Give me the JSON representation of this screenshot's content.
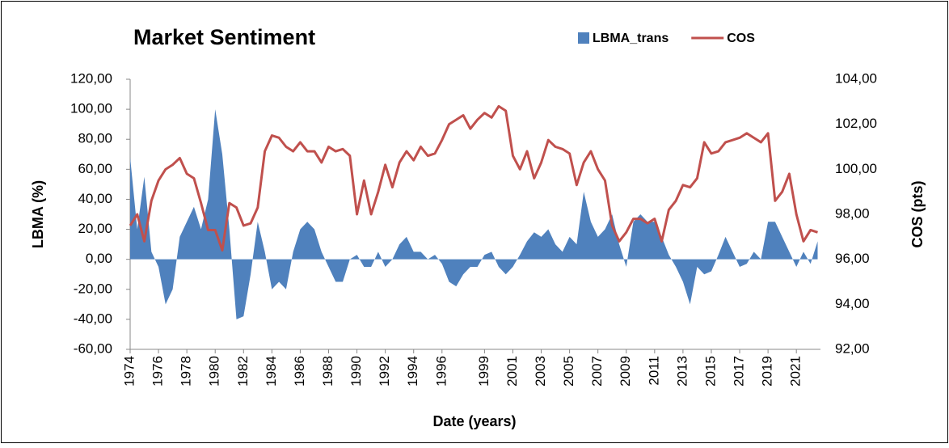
{
  "chart_data": {
    "type": "area-line",
    "title": "Market Sentiment",
    "x_label": "Date (years)",
    "y_label": "LBMA (%)",
    "y2_label": "COS (pts)",
    "legend": "top-right",
    "grid": false,
    "x": [
      1974,
      1974.5,
      1975,
      1975.5,
      1976,
      1976.5,
      1977,
      1977.5,
      1978,
      1978.5,
      1979,
      1979.5,
      1980,
      1980.5,
      1981,
      1981.5,
      1982,
      1982.5,
      1983,
      1983.5,
      1984,
      1984.5,
      1985,
      1985.5,
      1986,
      1986.5,
      1987,
      1987.5,
      1988,
      1988.5,
      1989,
      1989.5,
      1990,
      1990.5,
      1991,
      1991.5,
      1992,
      1992.5,
      1993,
      1993.5,
      1994,
      1994.5,
      1995,
      1995.5,
      1996,
      1996.5,
      1997,
      1997.5,
      1998,
      1998.5,
      1999,
      1999.5,
      2000,
      2000.5,
      2001,
      2001.5,
      2002,
      2002.5,
      2003,
      2003.5,
      2004,
      2004.5,
      2005,
      2005.5,
      2006,
      2006.5,
      2007,
      2007.5,
      2008,
      2008.5,
      2009,
      2009.5,
      2010,
      2010.5,
      2011,
      2011.5,
      2012,
      2012.5,
      2013,
      2013.5,
      2014,
      2014.5,
      2015,
      2015.5,
      2016,
      2016.5,
      2017,
      2017.5,
      2018,
      2018.5,
      2019,
      2019.5,
      2020,
      2020.5,
      2021,
      2021.5,
      2022,
      2022.5
    ],
    "series": [
      {
        "name": "LBMA_trans",
        "color": "#4f81bd",
        "axis": "y",
        "mark": "area",
        "values": [
          68,
          20,
          55,
          5,
          -5,
          -30,
          -20,
          15,
          25,
          35,
          20,
          40,
          100,
          70,
          20,
          -40,
          -38,
          -10,
          25,
          5,
          -20,
          -15,
          -20,
          5,
          20,
          25,
          20,
          5,
          -5,
          -15,
          -15,
          0,
          3,
          -5,
          -5,
          5,
          -5,
          0,
          10,
          15,
          5,
          5,
          0,
          3,
          -3,
          -15,
          -18,
          -10,
          -5,
          -5,
          3,
          5,
          -5,
          -10,
          -5,
          3,
          12,
          18,
          15,
          20,
          10,
          5,
          15,
          10,
          45,
          25,
          15,
          20,
          30,
          10,
          -5,
          25,
          30,
          25,
          25,
          15,
          3,
          -5,
          -15,
          -30,
          -5,
          -10,
          -8,
          3,
          15,
          5,
          -5,
          -3,
          5,
          0,
          25,
          25,
          15,
          5,
          -5,
          5,
          -3,
          12
        ]
      },
      {
        "name": "COS",
        "color": "#c0504d",
        "axis": "y2",
        "mark": "line",
        "values": [
          97.5,
          98.0,
          96.8,
          98.6,
          99.5,
          100.0,
          100.2,
          100.5,
          99.8,
          99.6,
          98.5,
          97.3,
          97.3,
          96.4,
          98.5,
          98.3,
          97.5,
          97.6,
          98.3,
          100.8,
          101.5,
          101.4,
          101.0,
          100.8,
          101.2,
          100.8,
          100.8,
          100.3,
          101.0,
          100.8,
          100.9,
          100.6,
          98.0,
          99.5,
          98.0,
          99.0,
          100.2,
          99.2,
          100.3,
          100.8,
          100.4,
          101.0,
          100.6,
          100.7,
          101.3,
          102.0,
          102.2,
          102.4,
          101.8,
          102.2,
          102.5,
          102.3,
          102.8,
          102.6,
          100.6,
          100.0,
          100.8,
          99.6,
          100.3,
          101.3,
          101.0,
          100.9,
          100.7,
          99.3,
          100.3,
          100.8,
          100.0,
          99.5,
          97.5,
          96.8,
          97.2,
          97.8,
          97.8,
          97.6,
          97.8,
          96.8,
          98.2,
          98.6,
          99.3,
          99.2,
          99.6,
          101.2,
          100.7,
          100.8,
          101.2,
          101.3,
          101.4,
          101.6,
          101.4,
          101.2,
          101.6,
          98.6,
          99.0,
          99.8,
          98.0,
          96.8,
          97.3,
          97.2
        ]
      }
    ],
    "xlim": [
      1974,
      2022.7
    ],
    "xticks": [
      1974,
      1976,
      1978,
      1980,
      1982,
      1984,
      1986,
      1988,
      1990,
      1992,
      1994,
      1996,
      1999,
      2001,
      2003,
      2005,
      2007,
      2009,
      2011,
      2013,
      2015,
      2017,
      2019,
      2021
    ],
    "ylim": [
      -60,
      120
    ],
    "yticks": [
      {
        "value": -60,
        "label": "-60,00"
      },
      {
        "value": -40,
        "label": "-40,00"
      },
      {
        "value": -20,
        "label": "-20,00"
      },
      {
        "value": 0,
        "label": "0,00"
      },
      {
        "value": 20,
        "label": "20,00"
      },
      {
        "value": 40,
        "label": "40,00"
      },
      {
        "value": 60,
        "label": "60,00"
      },
      {
        "value": 80,
        "label": "80,00"
      },
      {
        "value": 100,
        "label": "100,00"
      },
      {
        "value": 120,
        "label": "120,00"
      }
    ],
    "y2lim": [
      92,
      104
    ],
    "y2ticks": [
      {
        "value": 92,
        "label": "92,00"
      },
      {
        "value": 94,
        "label": "94,00"
      },
      {
        "value": 96,
        "label": "96,00"
      },
      {
        "value": 98,
        "label": "98,00"
      },
      {
        "value": 100,
        "label": "100,00"
      },
      {
        "value": 102,
        "label": "102,00"
      },
      {
        "value": 104,
        "label": "104,00"
      }
    ]
  }
}
